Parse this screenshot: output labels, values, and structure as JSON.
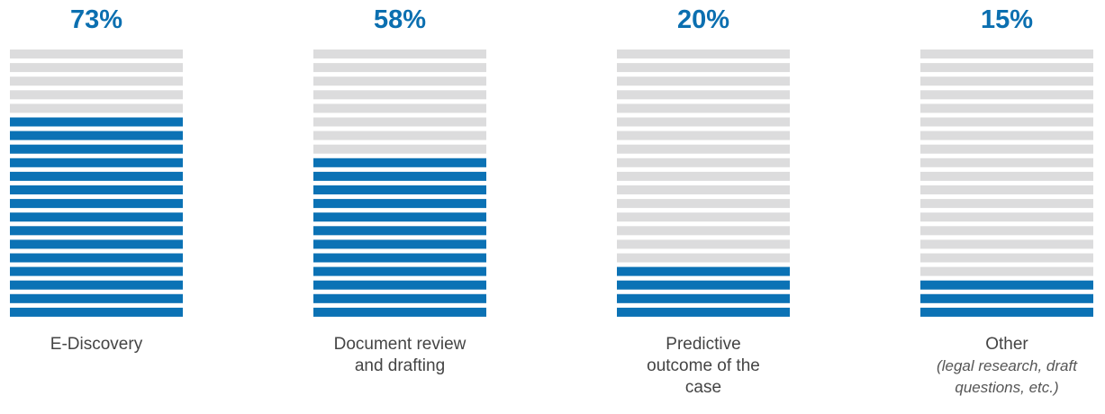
{
  "chart_data": {
    "type": "stripe-bar",
    "categories": [
      "E-Discovery",
      "Document review and drafting",
      "Predictive outcome of the case",
      "Other"
    ],
    "other_note": "(legal research, draft questions, etc.)",
    "values": [
      73,
      58,
      20,
      15
    ],
    "value_labels": [
      "73%",
      "58%",
      "20%",
      "15%"
    ],
    "ylim": [
      0,
      100
    ],
    "color": "#0b72b5",
    "background_color": "#dcdcdd"
  }
}
